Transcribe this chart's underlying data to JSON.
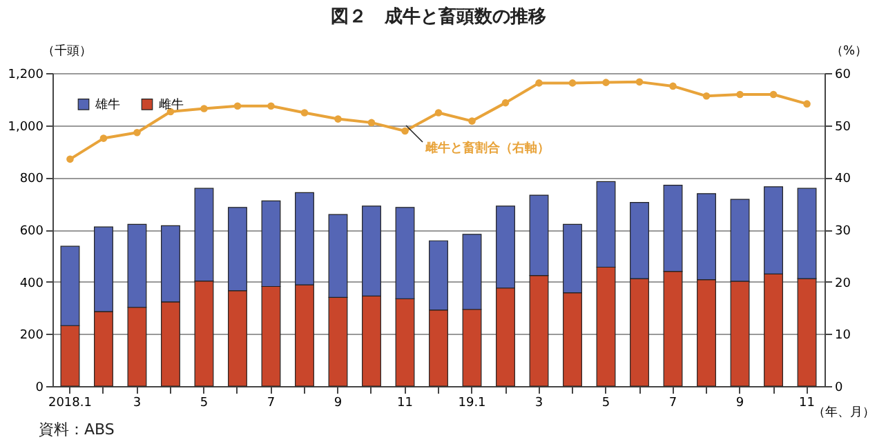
{
  "chart_data": {
    "type": "bar",
    "title": "図２　成牛と畜頭数の推移",
    "xlabel": "（年、月）",
    "ylabel": "（千頭）",
    "y2label": "（%）",
    "categories": [
      "2018.1",
      null,
      "3",
      null,
      "5",
      null,
      "7",
      null,
      "9",
      null,
      "11",
      null,
      "19.1",
      null,
      "3",
      null,
      "5",
      null,
      "7",
      null,
      "9",
      null,
      "11"
    ],
    "stacked": true,
    "series": [
      {
        "name": "雌牛",
        "color": "#c9462b",
        "values": [
          232,
          286,
          302,
          323,
          403,
          366,
          382,
          388,
          340,
          345,
          335,
          292,
          294,
          376,
          424,
          358,
          456,
          412,
          440,
          408,
          402,
          430,
          412
        ]
      },
      {
        "name": "雄牛",
        "color": "#5566b5",
        "values": [
          304,
          324,
          318,
          292,
          355,
          319,
          328,
          354,
          318,
          345,
          350,
          265,
          288,
          314,
          308,
          262,
          328,
          292,
          330,
          330,
          314,
          334,
          346
        ]
      },
      {
        "name": "雌牛と畜割合（右軸）",
        "type": "line",
        "axis": "y2",
        "color": "#e8a33a",
        "marker": "circle",
        "values": [
          43.5,
          47.5,
          48.6,
          52.6,
          53.2,
          53.7,
          53.7,
          52.4,
          51.2,
          50.5,
          48.9,
          52.4,
          50.8,
          54.3,
          58.1,
          58.1,
          58.2,
          58.3,
          57.5,
          55.6,
          55.9,
          55.9,
          54.1
        ]
      }
    ],
    "ylim": [
      0,
      1200
    ],
    "yticks": [
      0,
      200,
      400,
      600,
      800,
      {
        "value": 1000,
        "label": "1,000"
      },
      {
        "value": 1200,
        "label": "1,200"
      }
    ],
    "y2lim": [
      0,
      60
    ],
    "y2ticks": [
      0,
      10,
      20,
      30,
      40,
      50,
      60
    ],
    "grid": "y",
    "legend": "top left",
    "annotations": [
      "資料：ABS"
    ]
  }
}
